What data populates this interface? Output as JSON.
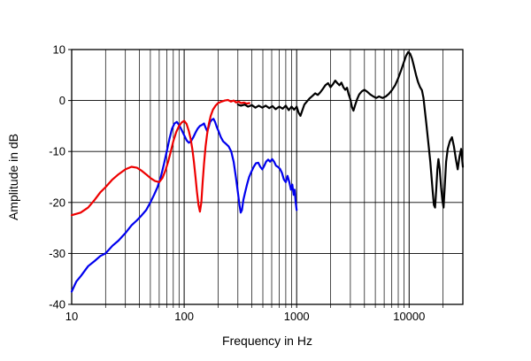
{
  "chart_data": {
    "type": "line",
    "title": "",
    "xlabel": "Frequency  in Hz",
    "ylabel": "Amplitude in dB",
    "x_scale": "log",
    "xlim": [
      10,
      30000
    ],
    "ylim": [
      -40,
      10
    ],
    "grid": true,
    "legend": "none",
    "axis_color": "#000000",
    "x_ticks": [
      {
        "value": 10,
        "label": "10"
      },
      {
        "value": 100,
        "label": "100"
      },
      {
        "value": 1000,
        "label": "1000"
      },
      {
        "value": 10000,
        "label": "10000"
      }
    ],
    "y_ticks": [
      {
        "value": 10,
        "label": "10"
      },
      {
        "value": 0,
        "label": "0"
      },
      {
        "value": -10,
        "label": "-10"
      },
      {
        "value": -20,
        "label": "-20"
      },
      {
        "value": -30,
        "label": "-30"
      },
      {
        "value": -40,
        "label": "-40"
      }
    ],
    "series": [
      {
        "name": "blue-trace",
        "color": "#0000ee",
        "points": [
          [
            10,
            -37.5
          ],
          [
            11,
            -35.5
          ],
          [
            12,
            -34.5
          ],
          [
            14,
            -32.5
          ],
          [
            16,
            -31.5
          ],
          [
            18,
            -30.5
          ],
          [
            20,
            -30
          ],
          [
            23,
            -28.5
          ],
          [
            26,
            -27.5
          ],
          [
            30,
            -26
          ],
          [
            34,
            -24.5
          ],
          [
            38,
            -23.5
          ],
          [
            42,
            -22.5
          ],
          [
            46,
            -21.5
          ],
          [
            50,
            -20
          ],
          [
            54,
            -18.5
          ],
          [
            58,
            -17
          ],
          [
            62,
            -15
          ],
          [
            66,
            -12.5
          ],
          [
            70,
            -10
          ],
          [
            74,
            -7.5
          ],
          [
            78,
            -5.5
          ],
          [
            82,
            -4.5
          ],
          [
            86,
            -4.2
          ],
          [
            90,
            -4.8
          ],
          [
            95,
            -5.8
          ],
          [
            100,
            -6.8
          ],
          [
            105,
            -7.8
          ],
          [
            110,
            -8.3
          ],
          [
            115,
            -8
          ],
          [
            120,
            -7.3
          ],
          [
            126,
            -6.3
          ],
          [
            132,
            -5.5
          ],
          [
            138,
            -5
          ],
          [
            144,
            -4.8
          ],
          [
            150,
            -4.5
          ],
          [
            155,
            -5.3
          ],
          [
            160,
            -6
          ],
          [
            165,
            -5.2
          ],
          [
            170,
            -4.2
          ],
          [
            176,
            -3.8
          ],
          [
            182,
            -3.6
          ],
          [
            188,
            -4.2
          ],
          [
            195,
            -5.2
          ],
          [
            202,
            -6
          ],
          [
            212,
            -7.2
          ],
          [
            222,
            -8
          ],
          [
            235,
            -8.5
          ],
          [
            248,
            -9
          ],
          [
            262,
            -10
          ],
          [
            275,
            -12
          ],
          [
            288,
            -15
          ],
          [
            300,
            -18
          ],
          [
            310,
            -20.5
          ],
          [
            318,
            -22
          ],
          [
            326,
            -21.5
          ],
          [
            336,
            -19.5
          ],
          [
            348,
            -18
          ],
          [
            362,
            -16.5
          ],
          [
            378,
            -15
          ],
          [
            395,
            -14
          ],
          [
            415,
            -13
          ],
          [
            435,
            -12.3
          ],
          [
            455,
            -12.2
          ],
          [
            475,
            -13
          ],
          [
            495,
            -13.5
          ],
          [
            515,
            -12.8
          ],
          [
            535,
            -12
          ],
          [
            558,
            -11.6
          ],
          [
            580,
            -12
          ],
          [
            605,
            -11.5
          ],
          [
            630,
            -12
          ],
          [
            655,
            -12.8
          ],
          [
            680,
            -13
          ],
          [
            710,
            -13.4
          ],
          [
            740,
            -14.2
          ],
          [
            770,
            -15.5
          ],
          [
            800,
            -16
          ],
          [
            830,
            -14.8
          ],
          [
            860,
            -16
          ],
          [
            890,
            -17.5
          ],
          [
            915,
            -16.5
          ],
          [
            940,
            -18.5
          ],
          [
            960,
            -17.5
          ],
          [
            980,
            -20
          ],
          [
            1000,
            -21.5
          ]
        ]
      },
      {
        "name": "red-trace",
        "color": "#ee0000",
        "points": [
          [
            10,
            -22.5
          ],
          [
            12,
            -22
          ],
          [
            14,
            -21
          ],
          [
            16,
            -19.5
          ],
          [
            18,
            -18
          ],
          [
            20,
            -17
          ],
          [
            23,
            -15.5
          ],
          [
            26,
            -14.5
          ],
          [
            30,
            -13.5
          ],
          [
            34,
            -13
          ],
          [
            38,
            -13.2
          ],
          [
            42,
            -13.8
          ],
          [
            46,
            -14.5
          ],
          [
            50,
            -15.2
          ],
          [
            55,
            -15.8
          ],
          [
            60,
            -16
          ],
          [
            64,
            -15.2
          ],
          [
            68,
            -13.8
          ],
          [
            72,
            -12
          ],
          [
            76,
            -10
          ],
          [
            80,
            -8
          ],
          [
            85,
            -6.2
          ],
          [
            90,
            -5
          ],
          [
            95,
            -4.3
          ],
          [
            100,
            -4
          ],
          [
            105,
            -4.6
          ],
          [
            110,
            -6
          ],
          [
            114,
            -7.5
          ],
          [
            118,
            -9.5
          ],
          [
            122,
            -12
          ],
          [
            126,
            -15
          ],
          [
            130,
            -18
          ],
          [
            134,
            -20.5
          ],
          [
            138,
            -21.8
          ],
          [
            142,
            -20
          ],
          [
            146,
            -16
          ],
          [
            150,
            -12.5
          ],
          [
            155,
            -9
          ],
          [
            160,
            -6.5
          ],
          [
            166,
            -4.5
          ],
          [
            172,
            -3
          ],
          [
            180,
            -1.8
          ],
          [
            190,
            -1
          ],
          [
            200,
            -0.5
          ],
          [
            215,
            -0.2
          ],
          [
            230,
            0
          ],
          [
            245,
            0.1
          ],
          [
            260,
            -0.2
          ],
          [
            275,
            0
          ],
          [
            290,
            -0.4
          ],
          [
            305,
            -0.2
          ],
          [
            320,
            -0.5
          ],
          [
            340,
            -0.4
          ],
          [
            360,
            -0.6
          ],
          [
            380,
            -0.5
          ]
        ]
      },
      {
        "name": "black-trace",
        "color": "#000000",
        "points": [
          [
            300,
            -0.8
          ],
          [
            320,
            -1
          ],
          [
            345,
            -0.8
          ],
          [
            370,
            -1.2
          ],
          [
            400,
            -0.9
          ],
          [
            430,
            -1.4
          ],
          [
            460,
            -1
          ],
          [
            495,
            -1.4
          ],
          [
            530,
            -1
          ],
          [
            570,
            -1.5
          ],
          [
            610,
            -1.1
          ],
          [
            650,
            -1.7
          ],
          [
            700,
            -1.2
          ],
          [
            750,
            -1.6
          ],
          [
            800,
            -1
          ],
          [
            850,
            -1.9
          ],
          [
            900,
            -1.2
          ],
          [
            950,
            -1.8
          ],
          [
            1000,
            -1.2
          ],
          [
            1040,
            -2.4
          ],
          [
            1080,
            -3
          ],
          [
            1120,
            -2
          ],
          [
            1170,
            -0.8
          ],
          [
            1230,
            -0.2
          ],
          [
            1300,
            0.4
          ],
          [
            1380,
            0.9
          ],
          [
            1460,
            1.4
          ],
          [
            1540,
            1.1
          ],
          [
            1620,
            1.6
          ],
          [
            1700,
            2.2
          ],
          [
            1800,
            3
          ],
          [
            1900,
            3.4
          ],
          [
            2000,
            2.6
          ],
          [
            2100,
            3.2
          ],
          [
            2200,
            3.9
          ],
          [
            2300,
            3.4
          ],
          [
            2400,
            3
          ],
          [
            2500,
            3.5
          ],
          [
            2600,
            2.6
          ],
          [
            2700,
            2.1
          ],
          [
            2800,
            2.5
          ],
          [
            2900,
            1.2
          ],
          [
            3000,
            0.2
          ],
          [
            3100,
            -1.3
          ],
          [
            3200,
            -2
          ],
          [
            3300,
            -1
          ],
          [
            3450,
            0.3
          ],
          [
            3600,
            1.2
          ],
          [
            3800,
            1.8
          ],
          [
            4000,
            2.1
          ],
          [
            4250,
            1.7
          ],
          [
            4500,
            1.2
          ],
          [
            4800,
            0.8
          ],
          [
            5100,
            0.5
          ],
          [
            5400,
            0.8
          ],
          [
            5800,
            0.5
          ],
          [
            6200,
            0.8
          ],
          [
            6600,
            1.3
          ],
          [
            7000,
            2
          ],
          [
            7500,
            3
          ],
          [
            8000,
            4.4
          ],
          [
            8500,
            6
          ],
          [
            9000,
            7.6
          ],
          [
            9400,
            8.8
          ],
          [
            9800,
            9.5
          ],
          [
            10200,
            9.2
          ],
          [
            10600,
            8.2
          ],
          [
            11000,
            6.8
          ],
          [
            11500,
            5
          ],
          [
            12000,
            3.6
          ],
          [
            12500,
            2.6
          ],
          [
            13000,
            2
          ],
          [
            13400,
            0.5
          ],
          [
            13800,
            -2
          ],
          [
            14200,
            -4.5
          ],
          [
            14600,
            -7
          ],
          [
            15000,
            -9.5
          ],
          [
            15400,
            -12
          ],
          [
            15800,
            -15
          ],
          [
            16200,
            -18
          ],
          [
            16600,
            -20.5
          ],
          [
            17000,
            -21
          ],
          [
            17400,
            -17.5
          ],
          [
            17800,
            -13.5
          ],
          [
            18200,
            -11.5
          ],
          [
            18700,
            -13.5
          ],
          [
            19200,
            -17
          ],
          [
            19700,
            -19.5
          ],
          [
            20200,
            -21
          ],
          [
            20700,
            -17
          ],
          [
            21300,
            -12
          ],
          [
            22000,
            -9.5
          ],
          [
            23000,
            -8
          ],
          [
            24000,
            -7.2
          ],
          [
            25000,
            -9
          ],
          [
            26000,
            -11.5
          ],
          [
            27000,
            -13.5
          ],
          [
            28000,
            -11
          ],
          [
            29000,
            -9.5
          ],
          [
            30000,
            -13
          ]
        ]
      }
    ]
  }
}
